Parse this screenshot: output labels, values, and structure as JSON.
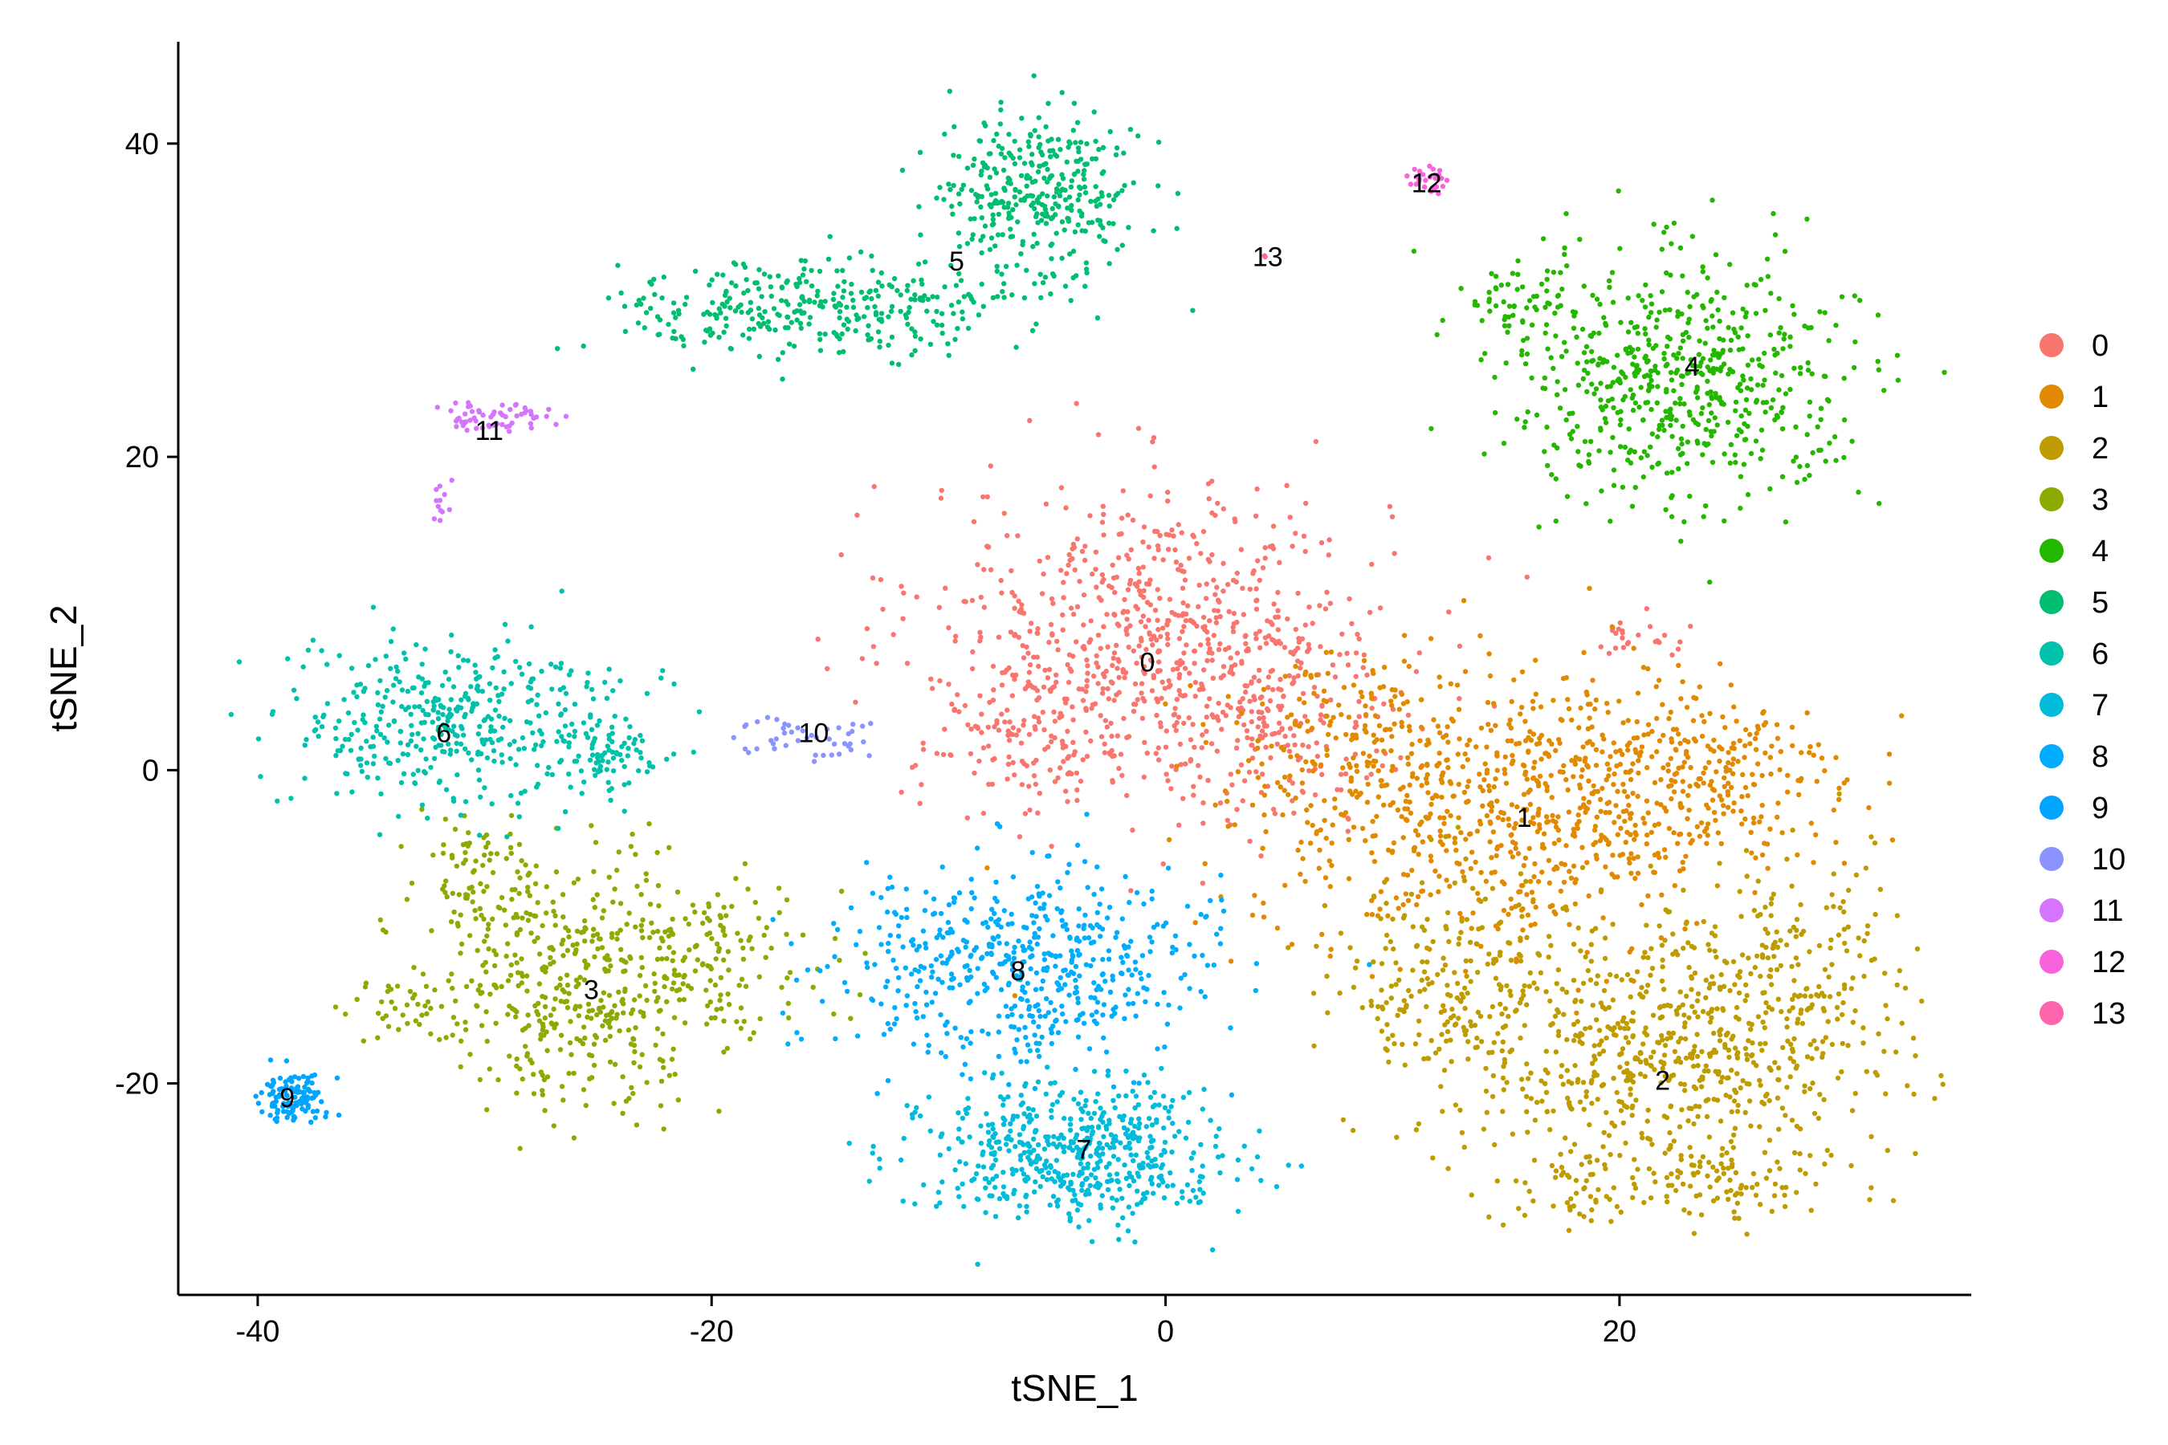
{
  "chart_data": {
    "type": "scatter",
    "xlabel": "tSNE_1",
    "ylabel": "tSNE_2",
    "xlim": [
      -43.5,
      35.5
    ],
    "ylim": [
      -33.5,
      46.5
    ],
    "xticks": [
      -40,
      -20,
      0,
      20
    ],
    "yticks": [
      -20,
      0,
      20,
      40
    ],
    "xtick_labels": [
      "-40",
      "-20",
      "0",
      "20"
    ],
    "ytick_labels": [
      "-20",
      "0",
      "20",
      "40"
    ],
    "grid": false,
    "legend_position": "right",
    "series": [
      {
        "name": "0",
        "color": "#F8766D",
        "label_pos": [
          -0.8,
          6.9
        ],
        "regions": [
          {
            "cx": -0.5,
            "cy": 8.5,
            "sx": 6.0,
            "sy": 5.8,
            "n": 700
          },
          {
            "cx": 4.5,
            "cy": 3.5,
            "sx": 3.5,
            "sy": 4.5,
            "n": 180
          },
          {
            "cx": -6.0,
            "cy": 2.0,
            "sx": 3.0,
            "sy": 3.0,
            "n": 120
          },
          {
            "cx": 20.5,
            "cy": 8.5,
            "sx": 1.2,
            "sy": 0.9,
            "n": 25
          }
        ]
      },
      {
        "name": "1",
        "color": "#E18A00",
        "label_pos": [
          15.8,
          -3.0
        ],
        "regions": [
          {
            "cx": 15.0,
            "cy": -2.5,
            "sx": 6.5,
            "sy": 5.0,
            "n": 700
          },
          {
            "cx": 23.0,
            "cy": -0.5,
            "sx": 4.0,
            "sy": 4.0,
            "n": 250
          },
          {
            "cx": 8.0,
            "cy": 2.0,
            "sx": 3.0,
            "sy": 3.0,
            "n": 120
          }
        ]
      },
      {
        "name": "2",
        "color": "#BE9C00",
        "label_pos": [
          21.9,
          -19.8
        ],
        "regions": [
          {
            "cx": 22.0,
            "cy": -18.0,
            "sx": 5.5,
            "sy": 5.0,
            "n": 650
          },
          {
            "cx": 12.5,
            "cy": -13.0,
            "sx": 3.0,
            "sy": 4.0,
            "n": 200
          },
          {
            "cx": 27.0,
            "cy": -13.0,
            "sx": 2.5,
            "sy": 4.5,
            "n": 150
          },
          {
            "cx": 22.0,
            "cy": -26.5,
            "sx": 4.5,
            "sy": 1.5,
            "n": 120
          }
        ]
      },
      {
        "name": "3",
        "color": "#8CAB00",
        "label_pos": [
          -25.3,
          -14.0
        ],
        "regions": [
          {
            "cx": -26.0,
            "cy": -13.5,
            "sx": 3.5,
            "sy": 4.5,
            "n": 400
          },
          {
            "cx": -20.0,
            "cy": -12.0,
            "sx": 3.0,
            "sy": 3.0,
            "n": 150
          },
          {
            "cx": -30.0,
            "cy": -7.0,
            "sx": 2.0,
            "sy": 2.5,
            "n": 80
          },
          {
            "cx": -33.0,
            "cy": -15.0,
            "sx": 1.8,
            "sy": 1.0,
            "n": 40
          }
        ]
      },
      {
        "name": "4",
        "color": "#24B700",
        "label_pos": [
          23.2,
          25.8
        ],
        "regions": [
          {
            "cx": 22.5,
            "cy": 25.0,
            "sx": 4.5,
            "sy": 4.5,
            "n": 600
          },
          {
            "cx": 15.5,
            "cy": 30.0,
            "sx": 1.8,
            "sy": 1.5,
            "n": 50
          }
        ]
      },
      {
        "name": "5",
        "color": "#00BE70",
        "label_pos": [
          -9.2,
          32.5
        ],
        "regions": [
          {
            "cx": -5.5,
            "cy": 36.5,
            "sx": 2.5,
            "sy": 3.2,
            "n": 350
          },
          {
            "cx": -15.5,
            "cy": 29.5,
            "sx": 5.0,
            "sy": 1.8,
            "n": 330
          }
        ]
      },
      {
        "name": "6",
        "color": "#00C1AB",
        "label_pos": [
          -31.8,
          2.4
        ],
        "regions": [
          {
            "cx": -31.5,
            "cy": 3.0,
            "sx": 4.5,
            "sy": 3.2,
            "n": 420
          },
          {
            "cx": -24.5,
            "cy": 1.0,
            "sx": 1.3,
            "sy": 1.3,
            "n": 70
          }
        ]
      },
      {
        "name": "7",
        "color": "#00BBDA",
        "label_pos": [
          -3.6,
          -24.2
        ],
        "regions": [
          {
            "cx": -4.0,
            "cy": -24.5,
            "sx": 4.0,
            "sy": 2.6,
            "n": 550
          }
        ]
      },
      {
        "name": "8",
        "color": "#00ACFC",
        "label_pos": [
          -6.5,
          -12.8
        ],
        "regions": [
          {
            "cx": -6.5,
            "cy": -12.5,
            "sx": 5.0,
            "sy": 3.5,
            "n": 550
          }
        ]
      },
      {
        "name": "9",
        "color": "#00A5FF",
        "label_pos": [
          -38.7,
          -20.9
        ],
        "regions": [
          {
            "cx": -38.5,
            "cy": -20.8,
            "sx": 0.9,
            "sy": 0.9,
            "n": 120
          }
        ]
      },
      {
        "name": "10",
        "color": "#8B93FF",
        "label_pos": [
          -15.5,
          2.4
        ],
        "regions": [
          {
            "cx": -17.0,
            "cy": 2.0,
            "sx": 1.2,
            "sy": 0.8,
            "n": 30
          },
          {
            "cx": -14.0,
            "cy": 2.2,
            "sx": 0.8,
            "sy": 0.8,
            "n": 15
          }
        ]
      },
      {
        "name": "11",
        "color": "#D575FE",
        "label_pos": [
          -29.8,
          21.7
        ],
        "regions": [
          {
            "cx": -29.5,
            "cy": 22.5,
            "sx": 1.6,
            "sy": 0.5,
            "n": 60
          },
          {
            "cx": -31.8,
            "cy": 17.5,
            "sx": 0.3,
            "sy": 1.3,
            "n": 12
          }
        ]
      },
      {
        "name": "12",
        "color": "#F962DD",
        "label_pos": [
          11.5,
          37.5
        ],
        "regions": [
          {
            "cx": 11.5,
            "cy": 37.8,
            "sx": 0.5,
            "sy": 0.5,
            "n": 28
          }
        ]
      },
      {
        "name": "13",
        "color": "#FF65AC",
        "label_pos": [
          4.5,
          32.8
        ],
        "regions": [
          {
            "cx": 4.3,
            "cy": 32.8,
            "sx": 0.1,
            "sy": 0.1,
            "n": 2
          }
        ]
      }
    ]
  }
}
